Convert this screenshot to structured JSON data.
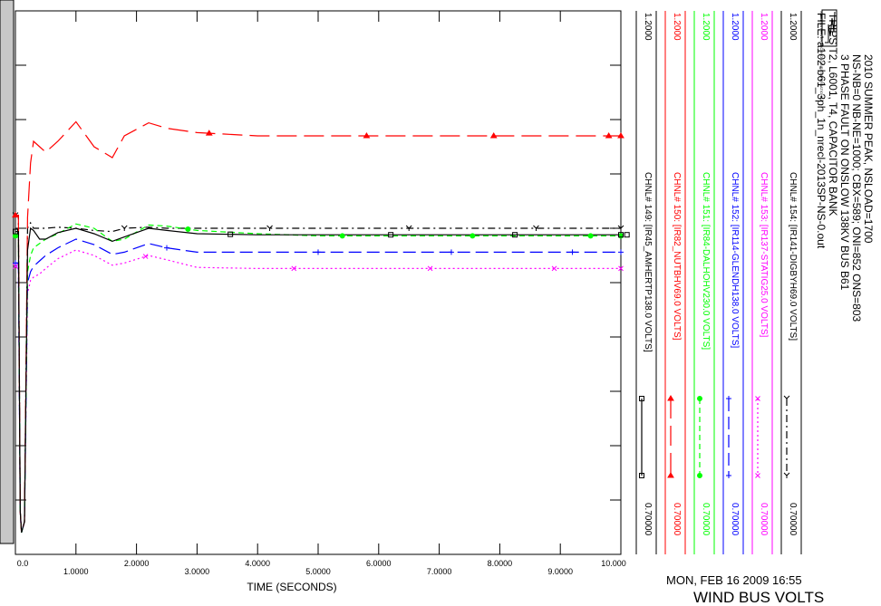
{
  "header": {
    "lines": [
      "2010 SUMMER PEAK, NSLOAD=1700",
      "NS-NB=0 NB-NE=1000; CBX=589; ONI=852 ONS=803",
      "3 PHASE FAULT ON ONSLOW 138KV BUS B61",
      "TRIPS T2, L6001, T4, CAPACITOR BANK",
      "FILE: a102-b61_3ph_1n_nrecl-2013SP-NS-0.out"
    ],
    "logo_text": "SIEMENS POWER TECHNOLOGIES INTERNATIONAL"
  },
  "footer": {
    "date": "MON, FEB 16 2009  16:55",
    "plot_title": "WIND BUS VOLTS"
  },
  "chart_data": {
    "type": "line",
    "xlabel": "TIME (SECONDS)",
    "xlim": [
      0.0,
      10.0
    ],
    "x_ticks": [
      "0.0",
      "1.0000",
      "2.0000",
      "3.0000",
      "4.0000",
      "5.0000",
      "6.0000",
      "7.0000",
      "8.0000",
      "9.0000",
      "10.000"
    ],
    "ylim": [
      0.7,
      1.2
    ],
    "ylim_labels": [
      "0.70000",
      "1.2000"
    ],
    "grid": true,
    "series": [
      {
        "name": "CHNL# 154: [IR141-DIGBYH69.0 VOLTS]",
        "color": "#000000",
        "dash": "8,4,2,4",
        "marker": "Y",
        "y_min_label": "0.70000",
        "y_max_label": "1.2000",
        "x": [
          0,
          0.05,
          0.08,
          0.1,
          0.15,
          0.2,
          0.25,
          0.3,
          0.4,
          0.5,
          0.7,
          1.0,
          1.3,
          1.6,
          1.8,
          2.2,
          2.5,
          3.0,
          4.0,
          5.0,
          6.0,
          7.0,
          8.0,
          9.0,
          10.0
        ],
        "y": [
          1.012,
          1.012,
          0.74,
          0.72,
          0.73,
          1.0,
          1.005,
          1.0,
          1.0,
          1.0,
          1.001,
          1.0,
          0.998,
          0.997,
          1.0,
          1.001,
          1.0,
          1.0,
          1.0,
          1.0,
          1.0,
          1.0,
          1.0,
          1.0,
          1.0
        ]
      },
      {
        "name": "CHNL# 153: [IR137-STATIG25.0 VOLTS]",
        "color": "#ff00ff",
        "dash": "2,3",
        "marker": "x",
        "y_min_label": "0.70000",
        "y_max_label": "1.2000",
        "x": [
          0,
          0.05,
          0.08,
          0.1,
          0.15,
          0.2,
          0.25,
          0.3,
          0.4,
          0.5,
          0.7,
          1.0,
          1.3,
          1.6,
          1.8,
          2.2,
          2.5,
          3.0,
          4.0,
          5.0,
          6.0,
          7.0,
          8.0,
          9.0,
          10.0
        ],
        "y": [
          0.965,
          0.965,
          0.74,
          0.72,
          0.73,
          0.94,
          0.952,
          0.955,
          0.958,
          0.963,
          0.972,
          0.98,
          0.975,
          0.966,
          0.968,
          0.975,
          0.971,
          0.964,
          0.963,
          0.963,
          0.963,
          0.963,
          0.963,
          0.963,
          0.963
        ]
      },
      {
        "name": "CHNL# 152: [IR114-GLENDH138.0 VOLTS]",
        "color": "#0000ff",
        "dash": "14,6",
        "marker": "+",
        "y_min_label": "0.70000",
        "y_max_label": "1.2000",
        "x": [
          0,
          0.05,
          0.08,
          0.1,
          0.15,
          0.2,
          0.25,
          0.3,
          0.4,
          0.5,
          0.7,
          1.0,
          1.3,
          1.6,
          1.8,
          2.2,
          2.5,
          3.0,
          4.0,
          5.0,
          6.0,
          7.0,
          8.0,
          9.0,
          10.0
        ],
        "y": [
          0.968,
          0.968,
          0.74,
          0.72,
          0.73,
          0.95,
          0.96,
          0.965,
          0.97,
          0.975,
          0.982,
          0.99,
          0.985,
          0.976,
          0.978,
          0.986,
          0.982,
          0.978,
          0.978,
          0.978,
          0.978,
          0.978,
          0.978,
          0.978,
          0.978
        ]
      },
      {
        "name": "CHNL# 151: [IR84-DALHOHV230.0 VOLTS]",
        "color": "#00ff00",
        "dash": "6,4",
        "marker": "o",
        "y_min_label": "0.70000",
        "y_max_label": "1.2000",
        "x": [
          0,
          0.05,
          0.08,
          0.1,
          0.15,
          0.2,
          0.25,
          0.3,
          0.4,
          0.5,
          0.7,
          1.0,
          1.3,
          1.6,
          1.8,
          2.2,
          2.5,
          3.0,
          4.0,
          5.0,
          6.0,
          7.0,
          8.0,
          9.0,
          10.0
        ],
        "y": [
          0.993,
          0.993,
          0.74,
          0.72,
          0.73,
          0.96,
          0.975,
          0.982,
          0.986,
          0.99,
          0.995,
          1.004,
          1.0,
          0.988,
          0.99,
          1.003,
          1.002,
          0.998,
          0.995,
          0.993,
          0.993,
          0.993,
          0.993,
          0.993,
          0.993
        ]
      },
      {
        "name": "CHNL# 150: [IR82_NUTBHV69.0 VOLTS]",
        "color": "#ff0000",
        "dash": "22,8",
        "marker": "^",
        "y_min_label": "0.70000",
        "y_max_label": "1.2000",
        "x": [
          0,
          0.05,
          0.08,
          0.1,
          0.15,
          0.2,
          0.25,
          0.3,
          0.4,
          0.5,
          0.7,
          1.0,
          1.3,
          1.6,
          1.8,
          2.2,
          2.5,
          3.0,
          4.0,
          5.0,
          6.0,
          7.0,
          8.0,
          9.0,
          10.0
        ],
        "y": [
          1.012,
          1.012,
          0.74,
          0.72,
          0.73,
          1.01,
          1.06,
          1.08,
          1.075,
          1.07,
          1.08,
          1.098,
          1.075,
          1.065,
          1.085,
          1.097,
          1.092,
          1.088,
          1.085,
          1.085,
          1.085,
          1.085,
          1.085,
          1.085,
          1.085
        ]
      },
      {
        "name": "CHNL# 149: [IR45_AMHERTP138.0 VOLTS]",
        "color": "#000000",
        "dash": "",
        "marker": "s",
        "y_min_label": "0.70000",
        "y_max_label": "1.2000",
        "x": [
          0,
          0.05,
          0.08,
          0.1,
          0.15,
          0.2,
          0.25,
          0.3,
          0.4,
          0.5,
          0.7,
          1.0,
          1.3,
          1.6,
          1.8,
          2.2,
          2.5,
          3.0,
          4.0,
          5.0,
          6.0,
          7.0,
          8.0,
          9.0,
          10.0
        ],
        "y": [
          0.997,
          0.997,
          0.74,
          0.72,
          0.73,
          0.98,
          1.0,
          0.998,
          0.99,
          0.99,
          0.996,
          1.0,
          0.995,
          0.988,
          0.992,
          1.0,
          0.998,
          0.995,
          0.994,
          0.994,
          0.994,
          0.994,
          0.994,
          0.994,
          0.994
        ]
      }
    ]
  }
}
